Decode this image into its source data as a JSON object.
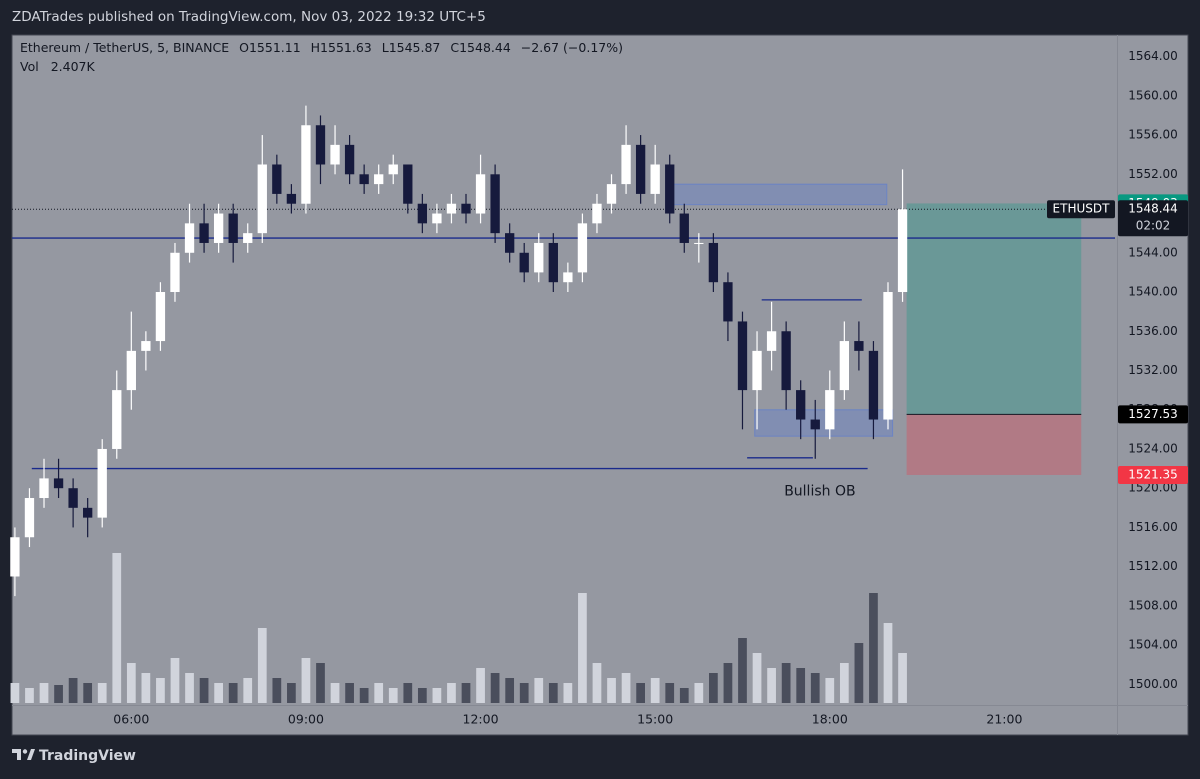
{
  "header": {
    "publisher": "ZDATrades published on TradingView.com, Nov 03, 2022 19:32 UTC+5"
  },
  "footer": {
    "brand": "TradingView"
  },
  "chart_data": {
    "type": "candlestick",
    "legend": {
      "symbol": "Ethereum / TetherUS, 5, BINANCE",
      "open": "O1551.11",
      "high": "H1551.63",
      "low": "L1545.87",
      "close": "C1548.44",
      "change": "−2.67 (−0.17%)",
      "volume_label": "Vol",
      "volume": "2.407K"
    },
    "x": [
      4,
      4.25,
      4.5,
      4.75,
      5,
      5.25,
      5.5,
      5.75,
      6,
      6.25,
      6.5,
      6.75,
      7,
      7.25,
      7.5,
      7.75,
      8,
      8.25,
      8.5,
      8.75,
      9,
      9.25,
      9.5,
      9.75,
      10,
      10.25,
      10.5,
      10.75,
      11,
      11.25,
      11.5,
      11.75,
      12,
      12.25,
      12.5,
      12.75,
      13,
      13.25,
      13.5,
      13.75,
      14,
      14.25,
      14.5,
      14.75,
      15,
      15.25,
      15.5,
      15.75,
      16,
      16.25,
      16.5,
      16.75,
      17,
      17.25,
      17.5,
      17.75,
      18,
      18.25,
      18.5,
      18.75,
      19,
      19.25
    ],
    "candles": [
      [
        1511,
        1516,
        1509,
        1515
      ],
      [
        1515,
        1520,
        1514,
        1519
      ],
      [
        1519,
        1523,
        1518,
        1521
      ],
      [
        1521,
        1523,
        1519,
        1520
      ],
      [
        1520,
        1521,
        1516,
        1518
      ],
      [
        1518,
        1519,
        1515,
        1517
      ],
      [
        1517,
        1525,
        1516,
        1524
      ],
      [
        1524,
        1532,
        1523,
        1530
      ],
      [
        1530,
        1538,
        1528,
        1534
      ],
      [
        1534,
        1536,
        1532,
        1535
      ],
      [
        1535,
        1541,
        1534,
        1540
      ],
      [
        1540,
        1545,
        1539,
        1544
      ],
      [
        1544,
        1549,
        1543,
        1547
      ],
      [
        1547,
        1549,
        1544,
        1545
      ],
      [
        1545,
        1549,
        1544,
        1548
      ],
      [
        1548,
        1549,
        1543,
        1545
      ],
      [
        1545,
        1547,
        1544,
        1546
      ],
      [
        1546,
        1556,
        1545,
        1553
      ],
      [
        1553,
        1554,
        1549,
        1550
      ],
      [
        1550,
        1551,
        1548,
        1549
      ],
      [
        1549,
        1559,
        1548,
        1557
      ],
      [
        1557,
        1558,
        1551,
        1553
      ],
      [
        1553,
        1557,
        1552,
        1555
      ],
      [
        1555,
        1556,
        1551,
        1552
      ],
      [
        1552,
        1553,
        1550,
        1551
      ],
      [
        1551,
        1553,
        1550,
        1552
      ],
      [
        1552,
        1554,
        1551,
        1553
      ],
      [
        1553,
        1553,
        1548,
        1549
      ],
      [
        1549,
        1550,
        1546,
        1547
      ],
      [
        1547,
        1549,
        1546,
        1548
      ],
      [
        1548,
        1550,
        1547,
        1549
      ],
      [
        1549,
        1550,
        1547,
        1548
      ],
      [
        1548,
        1554,
        1547,
        1552
      ],
      [
        1552,
        1553,
        1545,
        1546
      ],
      [
        1546,
        1547,
        1543,
        1544
      ],
      [
        1544,
        1545,
        1541,
        1542
      ],
      [
        1542,
        1546,
        1541,
        1545
      ],
      [
        1545,
        1546,
        1540,
        1541
      ],
      [
        1541,
        1543,
        1540,
        1542
      ],
      [
        1542,
        1548,
        1541,
        1547
      ],
      [
        1547,
        1550,
        1546,
        1549
      ],
      [
        1549,
        1552,
        1548,
        1551
      ],
      [
        1551,
        1557,
        1550,
        1555
      ],
      [
        1555,
        1556,
        1549,
        1550
      ],
      [
        1550,
        1555,
        1549,
        1553
      ],
      [
        1553,
        1554,
        1547,
        1548
      ],
      [
        1548,
        1549,
        1544,
        1545
      ],
      [
        1545,
        1546,
        1543,
        1545
      ],
      [
        1545,
        1546,
        1540,
        1541
      ],
      [
        1541,
        1542,
        1535,
        1537
      ],
      [
        1537,
        1538,
        1526,
        1530
      ],
      [
        1530,
        1536,
        1526,
        1534
      ],
      [
        1534,
        1539,
        1532,
        1536
      ],
      [
        1536,
        1537,
        1528,
        1530
      ],
      [
        1530,
        1531,
        1525,
        1527
      ],
      [
        1527,
        1529,
        1523,
        1526
      ],
      [
        1526,
        1532,
        1525,
        1530
      ],
      [
        1530,
        1537,
        1529,
        1535
      ],
      [
        1535,
        1537,
        1532,
        1534
      ],
      [
        1534,
        1535,
        1525,
        1527
      ],
      [
        1527,
        1541,
        1526,
        1540
      ],
      [
        1540,
        1552.5,
        1539,
        1548.44
      ]
    ],
    "volume": [
      2,
      1.5,
      2,
      1.8,
      2.5,
      2,
      2,
      15,
      4,
      3,
      2.5,
      4.5,
      3,
      2.5,
      2,
      2,
      2.5,
      7.5,
      2.5,
      2,
      4.5,
      4,
      2,
      2,
      1.5,
      2,
      1.5,
      2,
      1.5,
      1.5,
      2,
      2,
      3.5,
      3,
      2.5,
      2,
      2.5,
      2,
      2,
      11,
      4,
      2.5,
      3,
      2,
      2.5,
      2,
      1.5,
      2,
      3,
      4,
      6.5,
      5,
      3.5,
      4,
      3.5,
      3,
      2.5,
      4,
      6,
      11,
      8,
      5
    ],
    "up_color": "#ffffff",
    "down_color": "#161a3d",
    "volume_up_color": "#d1d4dc",
    "volume_down_color": "#4a4e5c",
    "xlim": [
      3.95,
      22.9
    ],
    "xticks": [
      {
        "value": 6,
        "label": "06:00"
      },
      {
        "value": 9,
        "label": "09:00"
      },
      {
        "value": 12,
        "label": "12:00"
      },
      {
        "value": 15,
        "label": "15:00"
      },
      {
        "value": 18,
        "label": "18:00"
      },
      {
        "value": 21,
        "label": "21:00"
      }
    ],
    "ylim": [
      1497.9,
      1566.2
    ],
    "yticks": [
      {
        "value": 1500,
        "label": "1500.00"
      },
      {
        "value": 1504,
        "label": "1504.00"
      },
      {
        "value": 1508,
        "label": "1508.00"
      },
      {
        "value": 1512,
        "label": "1512.00"
      },
      {
        "value": 1516,
        "label": "1516.00"
      },
      {
        "value": 1520,
        "label": "1520.00"
      },
      {
        "value": 1524,
        "label": "1524.00"
      },
      {
        "value": 1528,
        "label": "1528.00"
      },
      {
        "value": 1532,
        "label": "1532.00"
      },
      {
        "value": 1536,
        "label": "1536.00"
      },
      {
        "value": 1540,
        "label": "1540.00"
      },
      {
        "value": 1544,
        "label": "1544.00"
      },
      {
        "value": 1548,
        "label": "1548.00"
      },
      {
        "value": 1552,
        "label": "1552.00"
      },
      {
        "value": 1556,
        "label": "1556.00"
      },
      {
        "value": 1560,
        "label": "1560.00"
      },
      {
        "value": 1564,
        "label": "1564.00"
      }
    ],
    "volume_lim": [
      0,
      26
    ],
    "lines": [
      {
        "y": 1545.5,
        "x": [
          3.95,
          22.9
        ],
        "color": "#1a2a8c"
      },
      {
        "y": 1522,
        "x": [
          4.29,
          18.65
        ],
        "color": "#1a2a8c"
      },
      {
        "y": 1539.2,
        "x": [
          16.83,
          18.55
        ],
        "color": "#1a2a8c"
      },
      {
        "y": 1523.1,
        "x": [
          16.58,
          17.71
        ],
        "color": "#1a2a8c"
      }
    ],
    "boxes": [
      {
        "x": [
          15.26,
          18.98
        ],
        "y": [
          1548.9,
          1551.0
        ],
        "color": "rgba(41,98,255,0.18)"
      },
      {
        "x": [
          16.71,
          19.08
        ],
        "y": [
          1525.3,
          1528.0
        ],
        "color": "rgba(41,98,255,0.18)"
      }
    ],
    "annotations": [
      {
        "text": "Bullish OB",
        "x": 17.83,
        "y": 1520.9
      }
    ],
    "position": {
      "x": [
        19.32,
        22.32
      ],
      "entry": 1527.53,
      "target": 1549.03,
      "stop": 1521.35,
      "target_color": "#089981",
      "stop_color": "#f23645"
    },
    "last_price": {
      "value": 1548.44,
      "symbol": "ETHUSDT",
      "countdown": "02:02"
    }
  }
}
